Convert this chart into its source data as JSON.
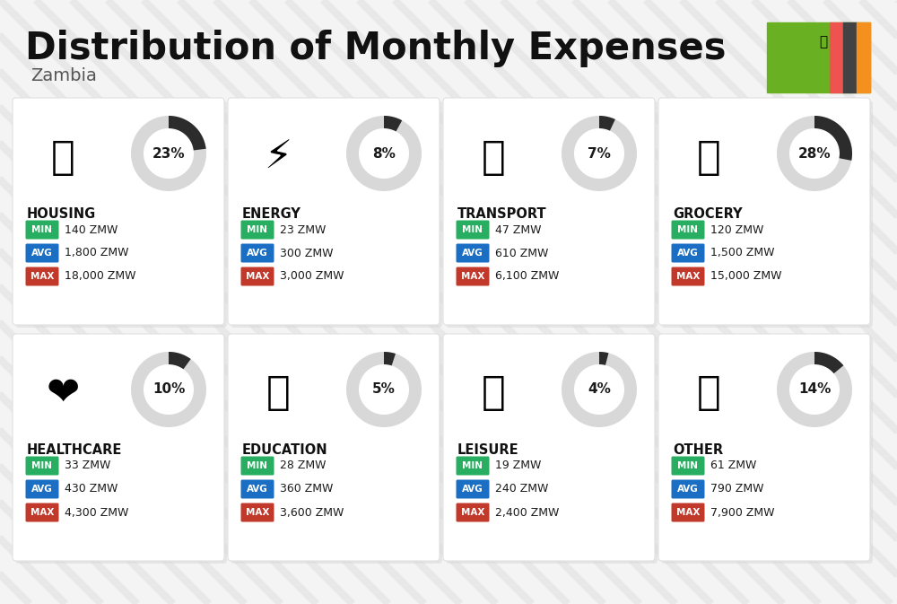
{
  "title": "Distribution of Monthly Expenses",
  "subtitle": "Zambia",
  "background_color": "#f4f4f4",
  "categories": [
    {
      "name": "HOUSING",
      "percent": 23,
      "min": "140 ZMW",
      "avg": "1,800 ZMW",
      "max": "18,000 ZMW",
      "row": 0,
      "col": 0
    },
    {
      "name": "ENERGY",
      "percent": 8,
      "min": "23 ZMW",
      "avg": "300 ZMW",
      "max": "3,000 ZMW",
      "row": 0,
      "col": 1
    },
    {
      "name": "TRANSPORT",
      "percent": 7,
      "min": "47 ZMW",
      "avg": "610 ZMW",
      "max": "6,100 ZMW",
      "row": 0,
      "col": 2
    },
    {
      "name": "GROCERY",
      "percent": 28,
      "min": "120 ZMW",
      "avg": "1,500 ZMW",
      "max": "15,000 ZMW",
      "row": 0,
      "col": 3
    },
    {
      "name": "HEALTHCARE",
      "percent": 10,
      "min": "33 ZMW",
      "avg": "430 ZMW",
      "max": "4,300 ZMW",
      "row": 1,
      "col": 0
    },
    {
      "name": "EDUCATION",
      "percent": 5,
      "min": "28 ZMW",
      "avg": "360 ZMW",
      "max": "3,600 ZMW",
      "row": 1,
      "col": 1
    },
    {
      "name": "LEISURE",
      "percent": 4,
      "min": "19 ZMW",
      "avg": "240 ZMW",
      "max": "2,400 ZMW",
      "row": 1,
      "col": 2
    },
    {
      "name": "OTHER",
      "percent": 14,
      "min": "61 ZMW",
      "avg": "790 ZMW",
      "max": "7,900 ZMW",
      "row": 1,
      "col": 3
    }
  ],
  "min_color": "#27ae60",
  "avg_color": "#1a6fc4",
  "max_color": "#c0392b",
  "arc_dark": "#2c2c2c",
  "arc_light": "#d8d8d8",
  "flag_green": "#6ab023",
  "flag_red": "#ef5350",
  "flag_black": "#424242",
  "flag_orange": "#f4901e"
}
